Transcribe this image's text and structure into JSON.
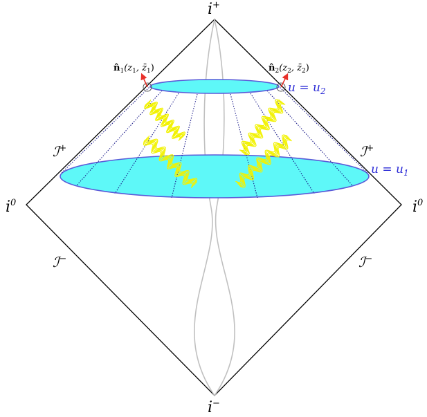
{
  "labels": {
    "i_plus": {
      "base": "i",
      "sup": "+"
    },
    "i_minus": {
      "base": "i",
      "sup": "−"
    },
    "i0_left": {
      "base": "i",
      "sup": "0"
    },
    "i0_right": {
      "base": "i",
      "sup": "0"
    },
    "scri_plus_left": {
      "base": "ℐ",
      "sup": "+"
    },
    "scri_plus_right": {
      "base": "ℐ",
      "sup": "+"
    },
    "scri_minus_left": {
      "base": "ℐ",
      "sup": "−"
    },
    "scri_minus_right": {
      "base": "ℐ",
      "sup": "−"
    },
    "u_u2": "u = u",
    "u_u2_sub": "2",
    "u_u1": "u = u",
    "u_u1_sub": "1",
    "n1_bold": "n̂",
    "n1_sub": "1",
    "n1_args": "(z",
    "n1_args_sub1": "1",
    "n1_args_mid": ", z̄",
    "n1_args_sub2": "1",
    "n1_args_end": ")",
    "n2_bold": "n̂",
    "n2_sub": "2",
    "n2_args": "(z",
    "n2_args_sub1": "2",
    "n2_args_mid": ", z̄",
    "n2_args_sub2": "2",
    "n2_args_end": ")"
  },
  "colors": {
    "disk_fill": "#5ef8f8",
    "disk_stroke": "#5a5ad8",
    "cut_label": "#2a2ad6",
    "ray": "#1a1a8a",
    "worldline": "#c0c0c0",
    "wave": "#ffff33",
    "wave_edge": "#c8c800",
    "arrow": "#e8302a",
    "outline": "#000000"
  }
}
